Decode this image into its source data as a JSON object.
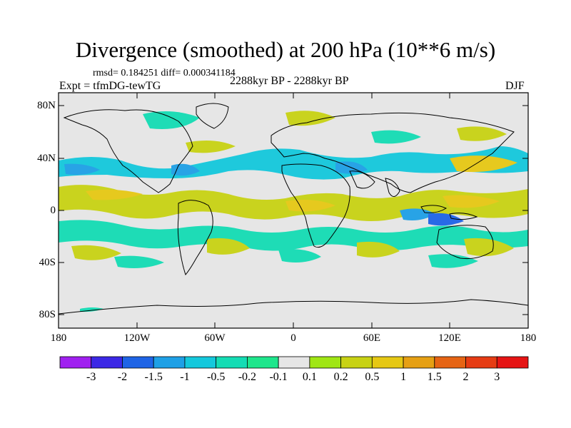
{
  "title": "Divergence (smoothed) at 200 hPa (10**6 m/s)",
  "stats": "rmsd= 0.184251 diff= 0.000341184",
  "experiment": "Expt = tfmDG-tewTG",
  "period": "2288kyr BP - 2288kyr BP",
  "season": "DJF",
  "lat_labels": [
    "80N",
    "40N",
    "0",
    "40S",
    "80S"
  ],
  "lon_labels": [
    "180",
    "120W",
    "60W",
    "0",
    "60E",
    "120E",
    "180"
  ],
  "colorbar": {
    "labels": [
      "-3",
      "-2",
      "-1.5",
      "-1",
      "-0.5",
      "-0.2",
      "-0.1",
      "0.1",
      "0.2",
      "0.5",
      "1",
      "1.5",
      "2",
      "3"
    ],
    "colors": [
      "#a020f0",
      "#3c28e6",
      "#1e64e6",
      "#1ea0e6",
      "#14c8dc",
      "#14dcb4",
      "#1ee68c",
      "#e6e6e6",
      "#a0e614",
      "#c8d214",
      "#e6c814",
      "#e6a014",
      "#e66414",
      "#e63c14",
      "#e61414"
    ]
  },
  "colors": {
    "background": "#e6e6e6",
    "frame": "#000000",
    "coast": "#000000"
  }
}
